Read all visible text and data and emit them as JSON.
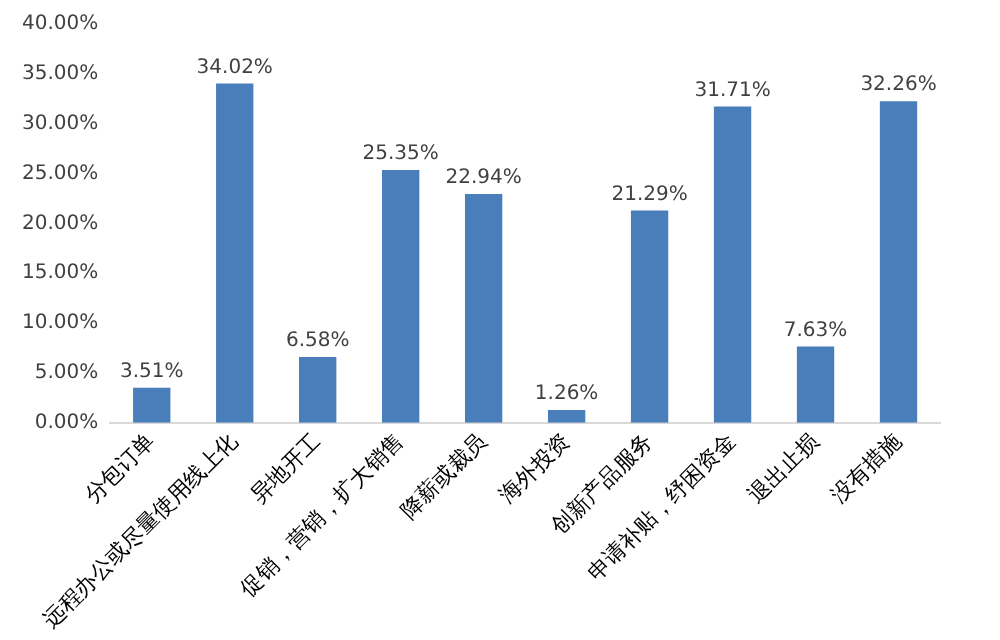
{
  "chart_data": {
    "type": "bar",
    "categories": [
      "分包订单",
      "远程办公或尽量使用线上化",
      "异地开工",
      "促销，营销，扩大销售",
      "降薪或裁员",
      "海外投资",
      "创新产品服务",
      "申请补贴，纾困资金",
      "退出止损",
      "没有措施"
    ],
    "values": [
      3.51,
      34.02,
      6.58,
      25.35,
      22.94,
      1.26,
      21.29,
      31.71,
      7.63,
      32.26
    ],
    "value_labels": [
      "3.51%",
      "34.02%",
      "6.58%",
      "25.35%",
      "22.94%",
      "1.26%",
      "21.29%",
      "31.71%",
      "7.63%",
      "32.26%"
    ],
    "color": "#4a7ebb",
    "ylim": [
      0,
      40
    ],
    "yticks": [
      {
        "value": 0,
        "label": "0.00%"
      },
      {
        "value": 5,
        "label": "5.00%"
      },
      {
        "value": 10,
        "label": "10.00%"
      },
      {
        "value": 15,
        "label": "15.00%"
      },
      {
        "value": 20,
        "label": "20.00%"
      },
      {
        "value": 25,
        "label": "25.00%"
      },
      {
        "value": 30,
        "label": "30.00%"
      },
      {
        "value": 35,
        "label": "35.00%"
      },
      {
        "value": 40,
        "label": "40.00%"
      }
    ],
    "grid": false,
    "legend": false
  }
}
